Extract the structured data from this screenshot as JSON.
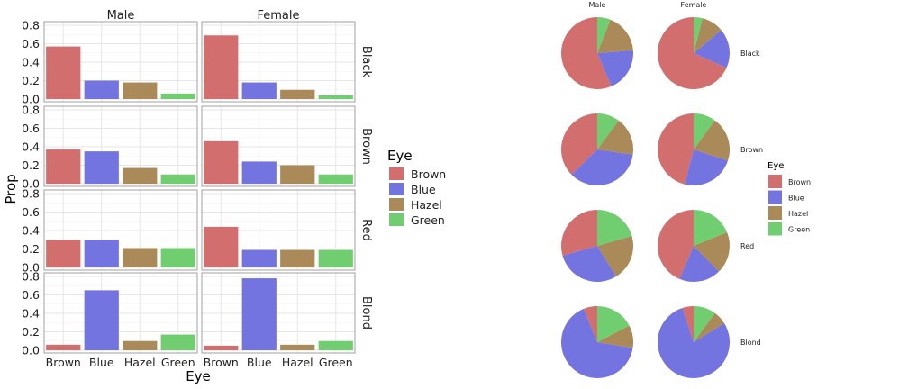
{
  "colors": {
    "Brown": "#d36e6e",
    "Blue": "#7474e0",
    "Hazel": "#aa8a58",
    "Green": "#70cd70",
    "panel_border": "#a0a0a0",
    "grid": "#e6e6e6",
    "text": "#222222"
  },
  "chart_data": [
    {
      "type": "bar",
      "facet_cols": [
        "Male",
        "Female"
      ],
      "facet_rows": [
        "Black",
        "Brown",
        "Red",
        "Blond"
      ],
      "categories": [
        "Brown",
        "Blue",
        "Hazel",
        "Green"
      ],
      "xlabel": "Eye",
      "ylabel": "Prop",
      "ylim": [
        0,
        0.8
      ],
      "yticks": [
        "0.0",
        "0.2",
        "0.4",
        "0.6",
        "0.8"
      ],
      "grid": true,
      "values": {
        "Male": {
          "Black": [
            0.57,
            0.2,
            0.18,
            0.06
          ],
          "Brown": [
            0.37,
            0.35,
            0.17,
            0.1
          ],
          "Red": [
            0.3,
            0.3,
            0.21,
            0.21
          ],
          "Blond": [
            0.06,
            0.65,
            0.1,
            0.17
          ]
        },
        "Female": {
          "Black": [
            0.69,
            0.18,
            0.1,
            0.04
          ],
          "Brown": [
            0.46,
            0.24,
            0.2,
            0.1
          ],
          "Red": [
            0.44,
            0.19,
            0.19,
            0.19
          ],
          "Blond": [
            0.05,
            0.78,
            0.06,
            0.1
          ]
        }
      },
      "legend": {
        "title": "Eye",
        "entries": [
          "Brown",
          "Blue",
          "Hazel",
          "Green"
        ],
        "placement": "right"
      }
    },
    {
      "type": "pie",
      "facet_cols": [
        "Male",
        "Female"
      ],
      "facet_rows": [
        "Black",
        "Brown",
        "Red",
        "Blond"
      ],
      "categories": [
        "Brown",
        "Blue",
        "Hazel",
        "Green"
      ],
      "values": {
        "Male": {
          "Black": [
            0.57,
            0.2,
            0.18,
            0.06
          ],
          "Brown": [
            0.37,
            0.35,
            0.17,
            0.1
          ],
          "Red": [
            0.3,
            0.3,
            0.21,
            0.21
          ],
          "Blond": [
            0.06,
            0.65,
            0.1,
            0.17
          ]
        },
        "Female": {
          "Black": [
            0.69,
            0.18,
            0.1,
            0.04
          ],
          "Brown": [
            0.46,
            0.24,
            0.2,
            0.1
          ],
          "Red": [
            0.44,
            0.19,
            0.19,
            0.19
          ],
          "Blond": [
            0.05,
            0.78,
            0.06,
            0.1
          ]
        }
      },
      "legend": {
        "title": "Eye",
        "entries": [
          "Brown",
          "Blue",
          "Hazel",
          "Green"
        ],
        "placement": "right"
      }
    }
  ]
}
